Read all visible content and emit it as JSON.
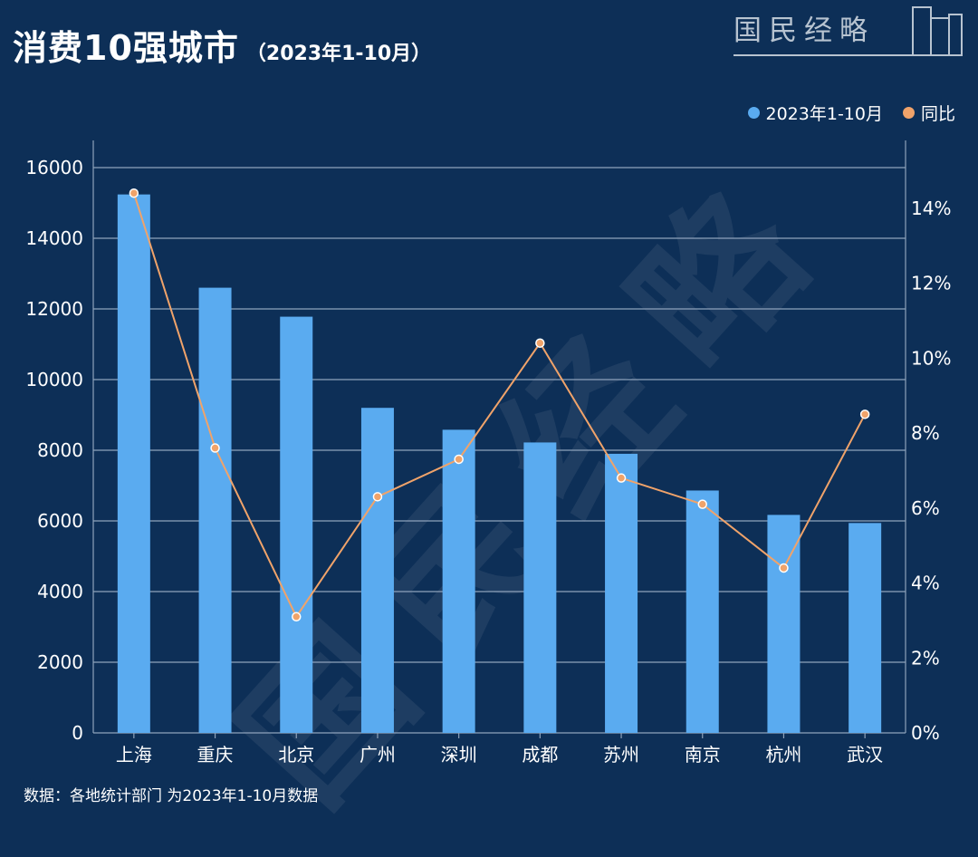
{
  "header": {
    "title": "消费10强城市",
    "subtitle": "（2023年1-10月）",
    "brand": "国民经略"
  },
  "watermark": "国民经略",
  "legend": {
    "items": [
      {
        "label": "2023年1-10月",
        "color": "#5aabf0"
      },
      {
        "label": "同比",
        "color": "#f0a36a"
      }
    ]
  },
  "footer": {
    "source": "数据：各地统计部门 为2023年1-10月数据"
  },
  "chart_data": {
    "type": "bar",
    "categories": [
      "上海",
      "重庆",
      "北京",
      "广州",
      "深圳",
      "成都",
      "苏州",
      "南京",
      "杭州",
      "武汉"
    ],
    "series": [
      {
        "name": "2023年1-10月",
        "type": "bar",
        "axis": "left",
        "color": "#5aabf0",
        "values": [
          15240,
          12600,
          11780,
          9200,
          8580,
          8220,
          7900,
          6860,
          6170,
          5940
        ]
      },
      {
        "name": "同比",
        "type": "line",
        "axis": "right",
        "color": "#f0a36a",
        "values": [
          14.4,
          7.6,
          3.1,
          6.3,
          7.3,
          10.4,
          6.8,
          6.1,
          4.4,
          8.5
        ]
      }
    ],
    "y_left": {
      "ylim": [
        0,
        16000
      ],
      "ticks": [
        "0",
        "2000",
        "4000",
        "6000",
        "8000",
        "10000",
        "12000",
        "14000",
        "16000"
      ]
    },
    "y_right": {
      "ylim": [
        0,
        16.0
      ],
      "ticks": [
        "0%",
        "2%",
        "4%",
        "6%",
        "8%",
        "10%",
        "12%",
        "14%"
      ]
    },
    "grid": true,
    "legend_position": "top-right"
  }
}
